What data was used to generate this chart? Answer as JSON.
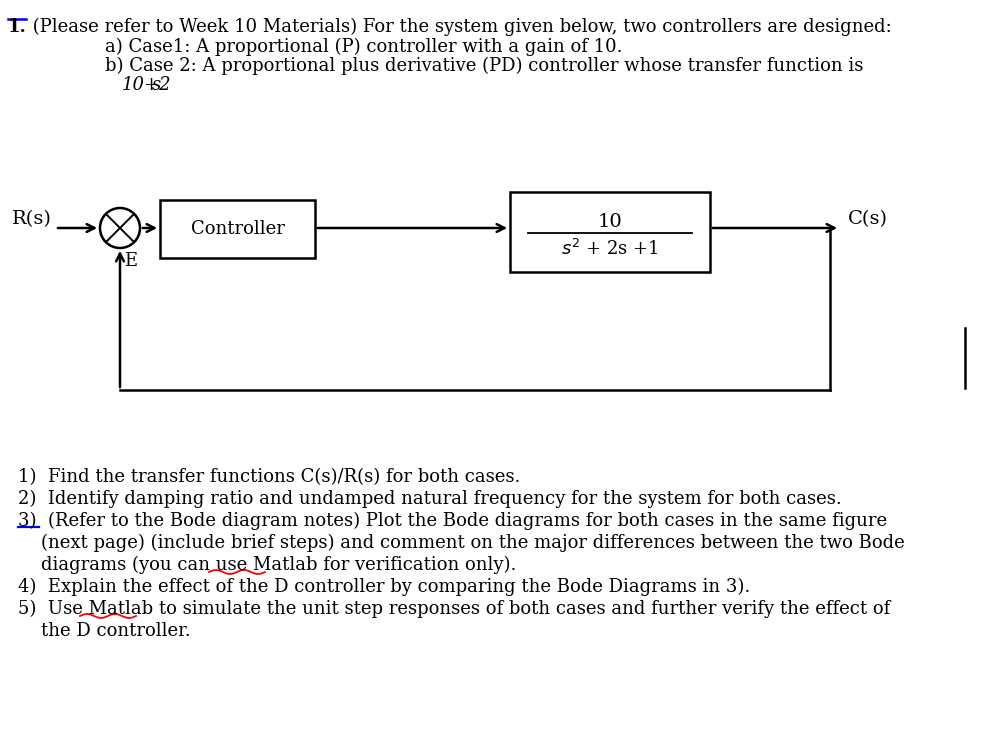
{
  "bg_color": "#ffffff",
  "label_Rs": "R(s)",
  "label_Cs": "C(s)",
  "label_E": "E",
  "label_Controller": "Controller",
  "tf_num": "10",
  "tf_den": "s² + 2s +1",
  "items": [
    "1)  Find the transfer functions C(s)/R(s) for both cases.",
    "2)  Identify damping ratio and undamped natural frequency for the system for both cases.",
    "3)  (Refer to the Bode diagram notes) Plot the Bode diagrams for both cases in the same figure",
    "    (next page) (include brief steps) and comment on the major differences between the two Bode",
    "    diagrams (you can use Matlab for verification only).",
    "4)  Explain the effect of the D controller by comparing the Bode Diagrams in 3).",
    "5)  Use Matlab to simulate the unit step responses of both cases and further verify the effect of",
    "    the D controller."
  ]
}
